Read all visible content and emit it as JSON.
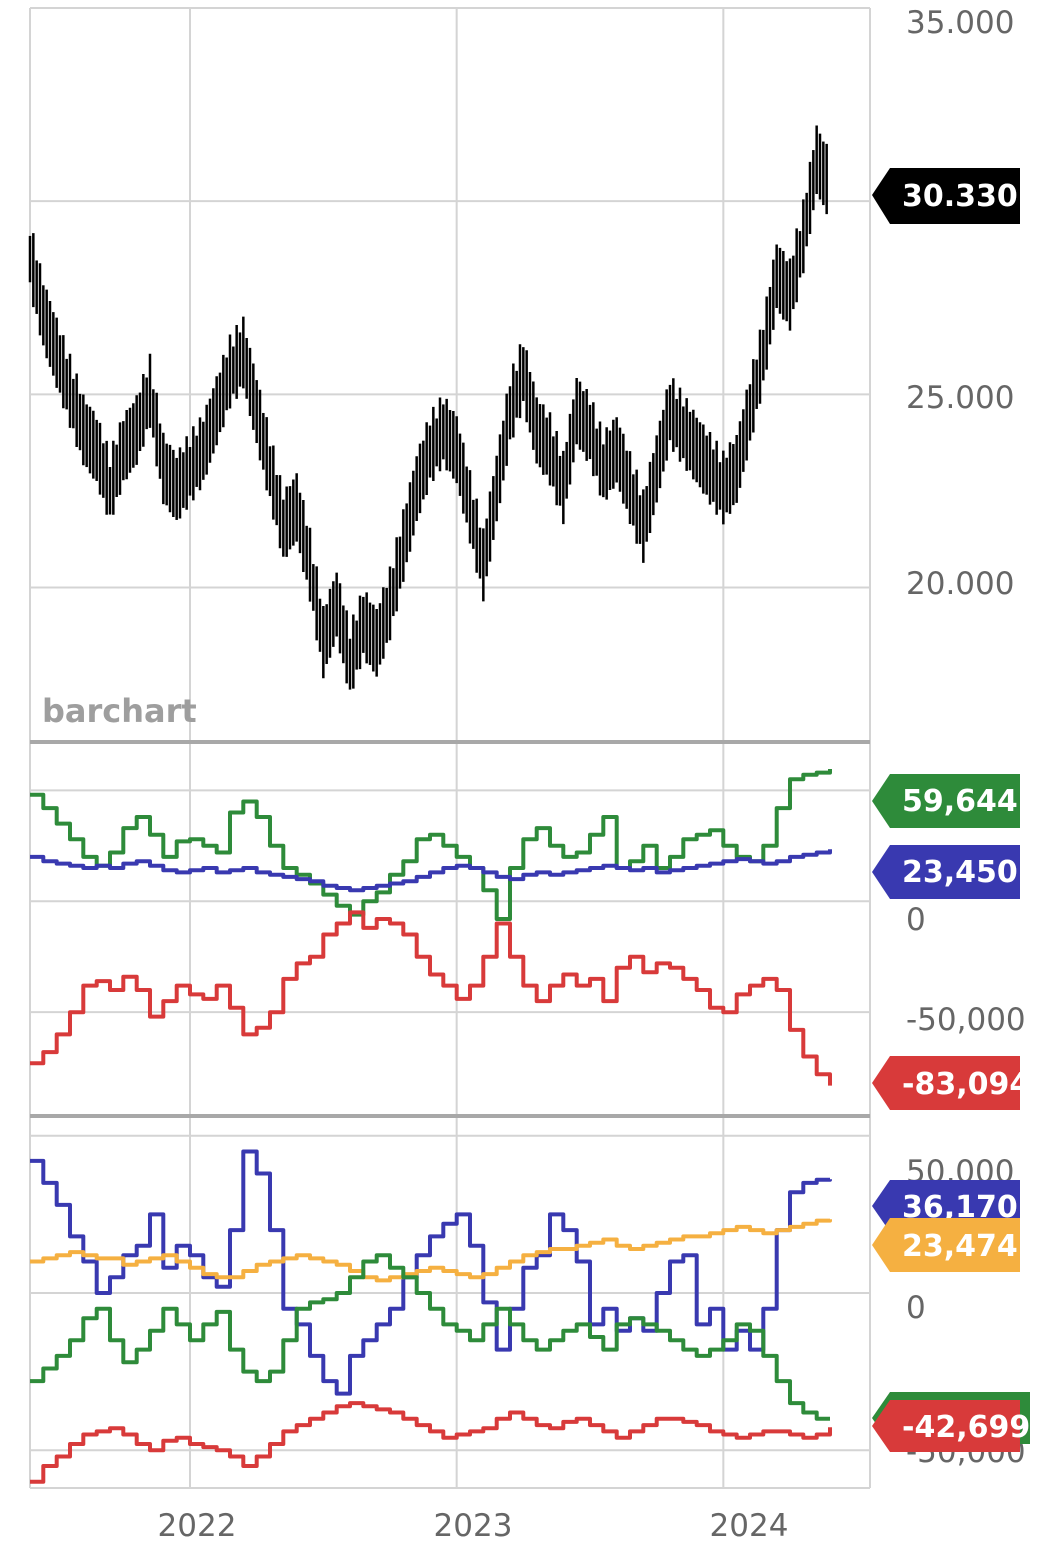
{
  "chart_data": [
    {
      "type": "ohlc",
      "watermark": "barchart",
      "last_price_label": "30.330",
      "last_price": 30.33,
      "y_ticks": [
        "35.000",
        "25.000",
        "20.000"
      ],
      "ylim": [
        16,
        35
      ],
      "x_ticks": [
        "2022",
        "2023",
        "2024"
      ],
      "xlim": [
        2021.4,
        2024.55
      ],
      "series_color": "#000000",
      "series": {
        "x": [
          2021.4,
          2021.45,
          2021.5,
          2021.55,
          2021.6,
          2021.65,
          2021.7,
          2021.75,
          2021.8,
          2021.85,
          2021.9,
          2021.95,
          2022.0,
          2022.05,
          2022.1,
          2022.15,
          2022.2,
          2022.25,
          2022.3,
          2022.35,
          2022.4,
          2022.45,
          2022.5,
          2022.55,
          2022.6,
          2022.65,
          2022.7,
          2022.75,
          2022.8,
          2022.85,
          2022.9,
          2022.95,
          2023.0,
          2023.05,
          2023.1,
          2023.15,
          2023.2,
          2023.25,
          2023.3,
          2023.35,
          2023.4,
          2023.45,
          2023.5,
          2023.55,
          2023.6,
          2023.65,
          2023.7,
          2023.75,
          2023.8,
          2023.85,
          2023.9,
          2023.95,
          2024.0,
          2024.05,
          2024.1,
          2024.15,
          2024.2,
          2024.25,
          2024.3,
          2024.35,
          2024.4
        ],
        "close": [
          28.5,
          27.0,
          26.0,
          25.0,
          24.0,
          23.5,
          22.5,
          23.5,
          24.0,
          25.0,
          23.0,
          22.5,
          23.0,
          23.5,
          24.5,
          25.5,
          26.0,
          24.5,
          23.0,
          21.5,
          22.0,
          20.5,
          18.5,
          19.5,
          18.0,
          19.0,
          18.5,
          19.5,
          21.0,
          22.5,
          23.5,
          24.0,
          23.5,
          22.0,
          20.5,
          22.5,
          24.5,
          25.5,
          24.0,
          23.5,
          22.5,
          24.5,
          24.0,
          23.0,
          23.5,
          22.5,
          21.5,
          23.0,
          24.5,
          24.0,
          23.5,
          23.0,
          22.5,
          23.0,
          24.5,
          26.0,
          28.0,
          27.5,
          29.0,
          31.0,
          30.33
        ]
      }
    },
    {
      "type": "line",
      "y_ticks": [
        "0",
        "-50,000"
      ],
      "ylim": [
        -95000,
        70000
      ],
      "x_ticks": [
        "2022",
        "2023",
        "2024"
      ],
      "xlim": [
        2021.4,
        2024.55
      ],
      "series": [
        {
          "color": "#2e8b3a",
          "flag": "59,644",
          "last": 59644,
          "values": [
            48000,
            42000,
            35000,
            28000,
            20000,
            16000,
            22000,
            33000,
            38000,
            30000,
            20000,
            27000,
            28000,
            25000,
            22000,
            40000,
            45000,
            38000,
            25000,
            15000,
            12000,
            8000,
            3000,
            -2000,
            -6000,
            0,
            4000,
            12000,
            18000,
            28000,
            30000,
            25000,
            20000,
            15000,
            5000,
            -8000,
            15000,
            28000,
            33000,
            25000,
            20000,
            22000,
            30000,
            38000,
            15000,
            18000,
            25000,
            15000,
            20000,
            28000,
            30000,
            32000,
            25000,
            20000,
            18000,
            25000,
            42000,
            55000,
            57000,
            58000,
            59644
          ]
        },
        {
          "color": "#3939b0",
          "flag": "23,450",
          "last": 23450,
          "values": [
            20000,
            18000,
            17000,
            16000,
            15000,
            16000,
            15000,
            17000,
            18000,
            16000,
            14000,
            13000,
            14000,
            15000,
            13000,
            14000,
            15000,
            13000,
            12000,
            11000,
            10000,
            9000,
            7000,
            6000,
            5000,
            6000,
            7000,
            8000,
            9000,
            11000,
            13000,
            15000,
            16000,
            15000,
            13000,
            11000,
            10000,
            12000,
            13000,
            12000,
            13000,
            14000,
            15000,
            16000,
            15000,
            14000,
            15000,
            13000,
            14000,
            15000,
            16000,
            17000,
            18000,
            19000,
            18000,
            17000,
            18000,
            20000,
            21000,
            22000,
            23450
          ]
        },
        {
          "color": "#d83a3a",
          "flag": "-83,094",
          "last": -83094,
          "values": [
            -73000,
            -68000,
            -60000,
            -50000,
            -38000,
            -36000,
            -40000,
            -34000,
            -40000,
            -52000,
            -45000,
            -38000,
            -42000,
            -44000,
            -38000,
            -48000,
            -60000,
            -57000,
            -50000,
            -35000,
            -28000,
            -25000,
            -15000,
            -10000,
            -5000,
            -12000,
            -8000,
            -10000,
            -15000,
            -25000,
            -33000,
            -38000,
            -44000,
            -38000,
            -25000,
            -10000,
            -25000,
            -38000,
            -45000,
            -38000,
            -33000,
            -38000,
            -35000,
            -45000,
            -30000,
            -25000,
            -32000,
            -28000,
            -30000,
            -35000,
            -40000,
            -48000,
            -50000,
            -42000,
            -38000,
            -35000,
            -40000,
            -58000,
            -70000,
            -78000,
            -83094
          ]
        }
      ]
    },
    {
      "type": "line",
      "y_ticks": [
        "50,000",
        "0",
        "-50,000"
      ],
      "ylim": [
        -62000,
        55000
      ],
      "x_ticks": [
        "2022",
        "2023",
        "2024"
      ],
      "xlim": [
        2021.4,
        2024.55
      ],
      "series": [
        {
          "color": "#3939b0",
          "flag": "36,170",
          "last": 36170,
          "values": [
            42000,
            35000,
            28000,
            18000,
            10000,
            0,
            5000,
            12000,
            15000,
            25000,
            8000,
            15000,
            12000,
            5000,
            2000,
            20000,
            45000,
            38000,
            20000,
            -5000,
            -10000,
            -20000,
            -28000,
            -32000,
            -20000,
            -15000,
            -10000,
            -5000,
            5000,
            12000,
            18000,
            22000,
            25000,
            15000,
            -3000,
            -18000,
            -5000,
            8000,
            12000,
            25000,
            20000,
            10000,
            -10000,
            -5000,
            -12000,
            -8000,
            -12000,
            0,
            10000,
            12000,
            -10000,
            -5000,
            -18000,
            -12000,
            -18000,
            -5000,
            20000,
            32000,
            35000,
            36000,
            36170
          ]
        },
        {
          "color": "#f5b041",
          "flag": "23,474",
          "last": 23474,
          "values": [
            10000,
            11000,
            12000,
            13000,
            12000,
            11000,
            11000,
            9000,
            10000,
            11000,
            12000,
            10000,
            8000,
            6000,
            5000,
            5000,
            7000,
            9000,
            10000,
            11000,
            12000,
            11000,
            10000,
            9000,
            7000,
            5000,
            4000,
            5000,
            6000,
            7000,
            8000,
            7000,
            6000,
            5000,
            6000,
            8000,
            10000,
            12000,
            13000,
            14000,
            14000,
            15000,
            16000,
            17000,
            15000,
            14000,
            15000,
            16000,
            17000,
            18000,
            18000,
            19000,
            20000,
            21000,
            20000,
            19000,
            20000,
            21000,
            22000,
            23000,
            23474
          ]
        },
        {
          "color": "#2e8b3a",
          "flag": "",
          "last": -40000,
          "values": [
            -28000,
            -24000,
            -20000,
            -15000,
            -8000,
            -5000,
            -15000,
            -22000,
            -18000,
            -12000,
            -5000,
            -10000,
            -15000,
            -10000,
            -6000,
            -18000,
            -25000,
            -28000,
            -25000,
            -15000,
            -5000,
            -3000,
            -2000,
            0,
            5000,
            10000,
            12000,
            8000,
            5000,
            0,
            -5000,
            -10000,
            -12000,
            -15000,
            -10000,
            -5000,
            -10000,
            -15000,
            -18000,
            -15000,
            -12000,
            -10000,
            -14000,
            -18000,
            -10000,
            -8000,
            -10000,
            -12000,
            -15000,
            -18000,
            -20000,
            -18000,
            -15000,
            -10000,
            -12000,
            -20000,
            -28000,
            -35000,
            -38000,
            -40000,
            -40000
          ]
        },
        {
          "color": "#d83a3a",
          "flag": "-42,699",
          "last": -42699,
          "values": [
            -60000,
            -55000,
            -52000,
            -48000,
            -45000,
            -44000,
            -43000,
            -45000,
            -48000,
            -50000,
            -47000,
            -46000,
            -48000,
            -49000,
            -50000,
            -52000,
            -55000,
            -52000,
            -48000,
            -44000,
            -42000,
            -40000,
            -38000,
            -36000,
            -35000,
            -36000,
            -37000,
            -38000,
            -40000,
            -42000,
            -44000,
            -46000,
            -45000,
            -44000,
            -43000,
            -40000,
            -38000,
            -40000,
            -42000,
            -43000,
            -41000,
            -40000,
            -42000,
            -44000,
            -46000,
            -44000,
            -42000,
            -40000,
            -40000,
            -41000,
            -42000,
            -44000,
            -45000,
            -46000,
            -45000,
            -44000,
            -44000,
            -45000,
            -46000,
            -45000,
            -42699
          ]
        }
      ]
    }
  ]
}
